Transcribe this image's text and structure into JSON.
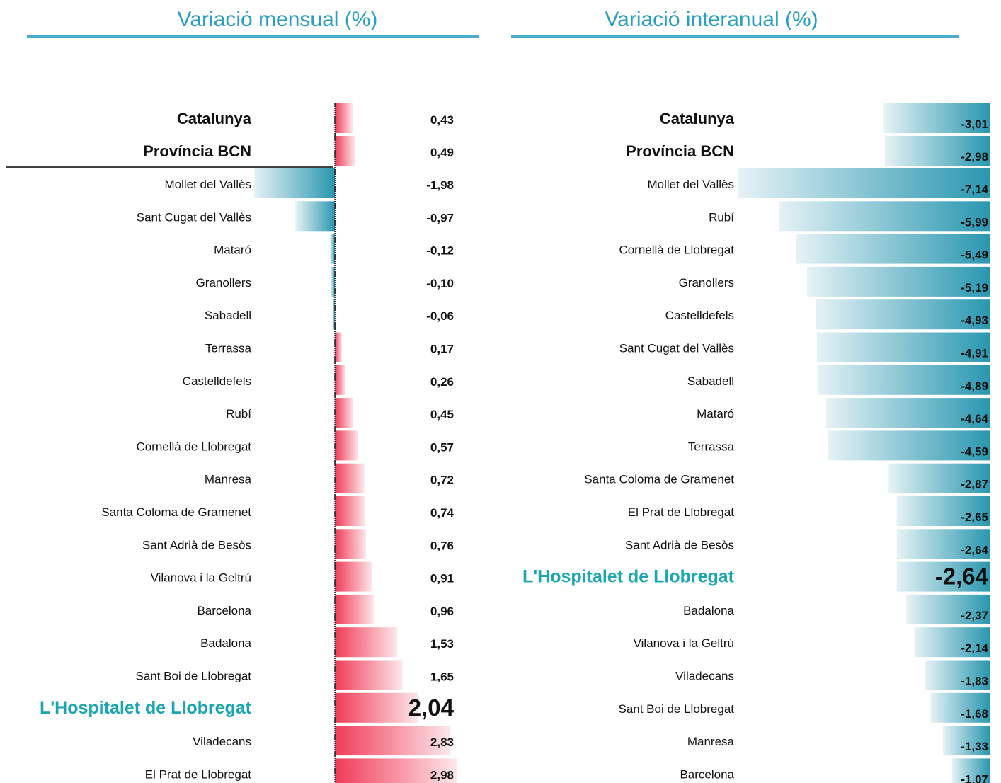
{
  "chart_data": [
    {
      "type": "bar",
      "orientation": "horizontal",
      "title": "Variació mensual (%)",
      "categories": [
        "Catalunya",
        "Província BCN",
        "Mollet del Vallès",
        "Sant Cugat del Vallès",
        "Mataró",
        "Granollers",
        "Sabadell",
        "Terrassa",
        "Castelldefels",
        "Rubí",
        "Cornellà de Llobregat",
        "Manresa",
        "Santa Coloma de Gramenet",
        "Sant Adrià de Besòs",
        "Vilanova i la Geltrú",
        "Barcelona",
        "Badalona",
        "Sant Boi de Llobregat",
        "L'Hospitalet de Llobregat",
        "Viladecans",
        "El Prat de Llobregat"
      ],
      "values": [
        0.43,
        0.49,
        -1.98,
        -0.97,
        -0.12,
        -0.1,
        -0.06,
        0.17,
        0.26,
        0.45,
        0.57,
        0.72,
        0.74,
        0.76,
        0.91,
        0.96,
        1.53,
        1.65,
        2.04,
        2.83,
        2.98
      ],
      "value_labels": [
        "0,43",
        "0,49",
        "-1,98",
        "-0,97",
        "-0,12",
        "-0,10",
        "-0,06",
        "0,17",
        "0,26",
        "0,45",
        "0,57",
        "0,72",
        "0,74",
        "0,76",
        "0,91",
        "0,96",
        "1,53",
        "1,65",
        "2,04",
        "2,83",
        "2,98"
      ],
      "colors": {
        "positive": "#f03c58",
        "negative": "#2a97b0"
      },
      "highlighted": 18,
      "highlight_color": "#1aa6b0",
      "summary_rows": 2
    },
    {
      "type": "bar",
      "orientation": "horizontal",
      "title": "Variació interanual (%)",
      "categories": [
        "Catalunya",
        "Província BCN",
        "Mollet del Vallès",
        "Rubí",
        "Cornellà de Llobregat",
        "Granollers",
        "Castelldefels",
        "Sant Cugat del Vallès",
        "Sabadell",
        "Mataró",
        "Terrassa",
        "Santa Coloma de Gramenet",
        "El Prat de Llobregat",
        "Sant Adrià de Besòs",
        "L'Hospitalet de Llobregat",
        "Badalona",
        "Vilanova i la Geltrú",
        "Viladecans",
        "Sant Boi de Llobregat",
        "Manresa",
        "Barcelona"
      ],
      "values": [
        -3.01,
        -2.98,
        -7.14,
        -5.99,
        -5.49,
        -5.19,
        -4.93,
        -4.91,
        -4.89,
        -4.64,
        -4.59,
        -2.87,
        -2.65,
        -2.64,
        -2.64,
        -2.37,
        -2.14,
        -1.83,
        -1.68,
        -1.33,
        -1.07
      ],
      "value_labels": [
        "-3,01",
        "-2,98",
        "-7,14",
        "-5,99",
        "-5,49",
        "-5,19",
        "-4,93",
        "-4,91",
        "-4,89",
        "-4,64",
        "-4,59",
        "-2,87",
        "-2,65",
        "-2,64",
        "-2,64",
        "-2,37",
        "-2,14",
        "-1,83",
        "-1,68",
        "-1,33",
        "-1,07"
      ],
      "colors": {
        "positive": "#f03c58",
        "negative": "#2a97b0"
      },
      "highlighted": 14,
      "highlight_color": "#1aa6b0",
      "summary_rows": 2
    }
  ]
}
